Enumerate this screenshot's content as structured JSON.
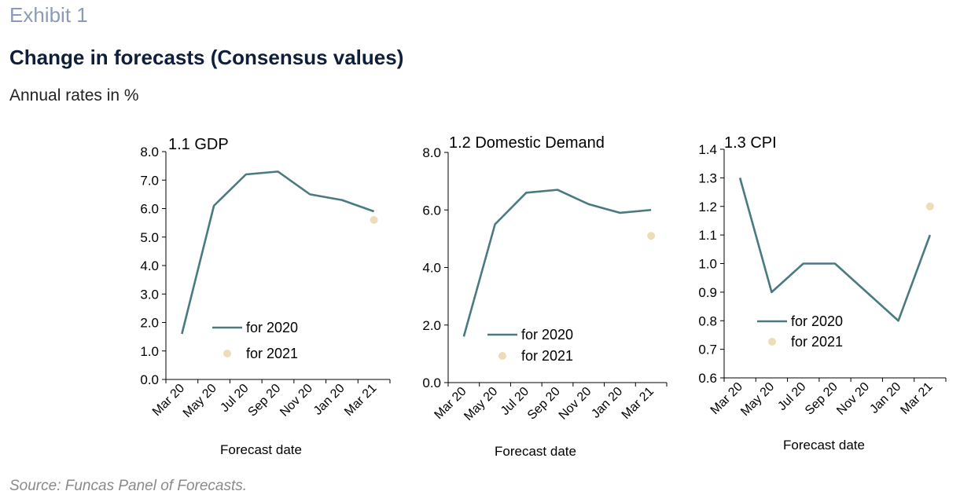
{
  "exhibit": "Exhibit 1",
  "title": "Change in forecasts (Consensus values)",
  "subtitle": "Annual rates in %",
  "source": "Source: Funcas Panel of Forecasts.",
  "colors": {
    "line_2020": "#4a7a80",
    "dot_2021": "#eddcb8",
    "axis": "#000000"
  },
  "chart_data": [
    {
      "type": "line",
      "title": "1.1 GDP",
      "xlabel": "Forecast date",
      "ylabel": "",
      "categories": [
        "Mar 20",
        "May 20",
        "Jul 20",
        "Sep 20",
        "Nov 20",
        "Jan 20",
        "Mar 21"
      ],
      "yticks": [
        "0.0",
        "1.0",
        "2.0",
        "3.0",
        "4.0",
        "5.0",
        "6.0",
        "7.0",
        "8.0"
      ],
      "ylim": [
        0,
        8
      ],
      "x": [
        0,
        1,
        2,
        3,
        4,
        5,
        6
      ],
      "series": [
        {
          "name": "for 2020",
          "kind": "line",
          "x": [
            0,
            1,
            2,
            3,
            4,
            5,
            6
          ],
          "values": [
            1.6,
            6.1,
            7.2,
            7.3,
            6.5,
            6.3,
            5.9
          ]
        },
        {
          "name": "for 2021",
          "kind": "point",
          "x": [
            6
          ],
          "values": [
            5.6
          ]
        }
      ],
      "legend": "lower-right"
    },
    {
      "type": "line",
      "title": "1.2 Domestic  Demand",
      "xlabel": "Forecast date",
      "ylabel": "",
      "categories": [
        "Mar 20",
        "May 20",
        "Jul 20",
        "Sep 20",
        "Nov 20",
        "Jan 20",
        "Mar 21"
      ],
      "yticks": [
        "0.0",
        "2.0",
        "4.0",
        "6.0",
        "8.0"
      ],
      "ylim": [
        0,
        8
      ],
      "x": [
        0,
        1,
        2,
        3,
        4,
        5,
        6
      ],
      "series": [
        {
          "name": "for 2020",
          "kind": "line",
          "x": [
            0,
            1,
            2,
            3,
            4,
            5,
            6
          ],
          "values": [
            1.6,
            5.5,
            6.6,
            6.7,
            6.2,
            5.9,
            6.0
          ]
        },
        {
          "name": "for 2021",
          "kind": "point",
          "x": [
            6
          ],
          "values": [
            5.1
          ]
        }
      ],
      "legend": "lower-right"
    },
    {
      "type": "line",
      "title": "1.3 CPI",
      "xlabel": "Forecast date",
      "ylabel": "",
      "categories": [
        "Mar 20",
        "May 20",
        "Jul 20",
        "Sep 20",
        "Nov 20",
        "Jan 20",
        "Mar 21"
      ],
      "yticks": [
        "0.6",
        "0.7",
        "0.8",
        "0.9",
        "1.0",
        "1.1",
        "1.2",
        "1.3",
        "1.4"
      ],
      "ylim": [
        0.6,
        1.4
      ],
      "x": [
        0,
        1,
        2,
        3,
        4,
        5,
        6
      ],
      "series": [
        {
          "name": "for 2020",
          "kind": "line",
          "x": [
            0,
            1,
            2,
            3,
            4,
            5,
            6
          ],
          "values": [
            1.3,
            0.9,
            1.0,
            1.0,
            0.9,
            0.8,
            1.1
          ]
        },
        {
          "name": "for 2021",
          "kind": "point",
          "x": [
            6
          ],
          "values": [
            1.2
          ]
        }
      ],
      "legend": "lower-right"
    }
  ]
}
